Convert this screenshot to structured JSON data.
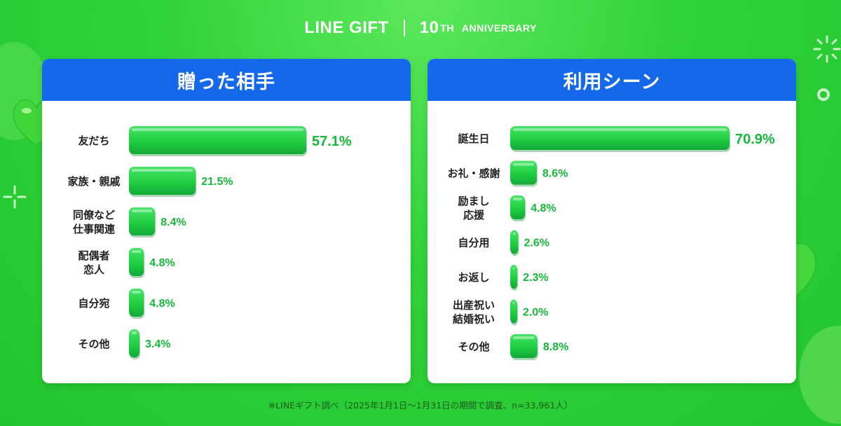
{
  "brand": {
    "logo": "LINE GIFT",
    "anniversary_number": "10",
    "anniversary_suffix": "TH",
    "anniversary_word": "ANNIVERSARY"
  },
  "colors": {
    "background": "#2fd238",
    "panel_header": "#1668ea",
    "bar": "#1fcf40",
    "value_text": "#17b83a"
  },
  "chart_data": [
    {
      "type": "bar",
      "orientation": "horizontal",
      "title": "贈った相手",
      "categories": [
        [
          "友だち"
        ],
        [
          "家族・親戚"
        ],
        [
          "同僚など",
          "仕事関連"
        ],
        [
          "配偶者",
          "恋人"
        ],
        [
          "自分宛"
        ],
        [
          "その他"
        ]
      ],
      "values": [
        57.1,
        21.5,
        8.4,
        4.8,
        4.8,
        3.4
      ],
      "labels": [
        "57.1%",
        "21.5%",
        "8.4%",
        "4.8%",
        "4.8%",
        "3.4%"
      ],
      "unit": "%"
    },
    {
      "type": "bar",
      "orientation": "horizontal",
      "title": "利用シーン",
      "categories": [
        [
          "誕生日"
        ],
        [
          "お礼・感謝"
        ],
        [
          "励まし",
          "応援"
        ],
        [
          "自分用"
        ],
        [
          "お返し"
        ],
        [
          "出産祝い",
          "結婚祝い"
        ],
        [
          "その他"
        ]
      ],
      "values": [
        70.9,
        8.6,
        4.8,
        2.6,
        2.3,
        2.0,
        8.8
      ],
      "labels": [
        "70.9%",
        "8.6%",
        "4.8%",
        "2.6%",
        "2.3%",
        "2.0%",
        "8.8%"
      ],
      "unit": "%"
    }
  ],
  "footnote": "※LINEギフト調べ（2025年1月1日〜1月31日の期間で調査、n=33,961人）"
}
